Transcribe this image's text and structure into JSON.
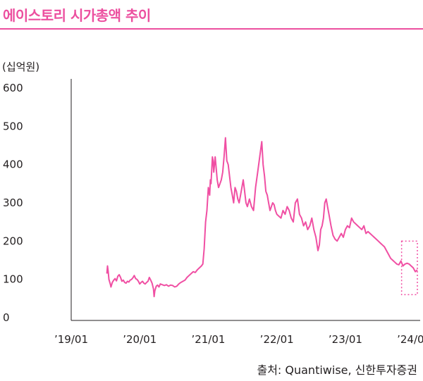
{
  "header": {
    "title": "에이스토리 시가총액 추이",
    "unit_label": "(십억원)"
  },
  "footer": {
    "source": "출처: Quantiwise, 신한투자증권"
  },
  "colors": {
    "accent": "#ec4f9f",
    "line": "#f04fa3",
    "axis": "#231f20"
  },
  "chart_data": {
    "type": "line",
    "title": "에이스토리 시가총액 추이",
    "ylabel": "(십억원)",
    "xlabel": "",
    "ylim": [
      0,
      600
    ],
    "xlim": [
      2019.0,
      2024.05
    ],
    "y_ticks": [
      "0",
      "100",
      "200",
      "300",
      "400",
      "500",
      "600"
    ],
    "x_ticks": [
      {
        "label": "’19/01",
        "x": 2019.0
      },
      {
        "label": "’20/01",
        "x": 2020.0
      },
      {
        "label": "’21/01",
        "x": 2021.0
      },
      {
        "label": "’22/01",
        "x": 2022.0
      },
      {
        "label": "’23/01",
        "x": 2023.0
      },
      {
        "label": "’24/01",
        "x": 2024.0
      }
    ],
    "grid": false,
    "legend": "none",
    "highlight_box": {
      "x_from": 2023.82,
      "x_to": 2024.05,
      "y_from": 60,
      "y_to": 200,
      "style": "dotted"
    },
    "series": [
      {
        "x": [
          2019.52,
          2019.53,
          2019.54,
          2019.55,
          2019.57,
          2019.58,
          2019.6,
          2019.62,
          2019.64,
          2019.66,
          2019.68,
          2019.7,
          2019.72,
          2019.74,
          2019.76,
          2019.78,
          2019.8,
          2019.82,
          2019.84,
          2019.86,
          2019.88,
          2019.9,
          2019.92,
          2019.94,
          2019.96,
          2019.98,
          2020.0,
          2020.02,
          2020.04,
          2020.06,
          2020.08,
          2020.1,
          2020.12,
          2020.14,
          2020.16,
          2020.18,
          2020.2,
          2020.21,
          2020.22,
          2020.24,
          2020.26,
          2020.28,
          2020.3,
          2020.33,
          2020.36,
          2020.39,
          2020.42,
          2020.45,
          2020.48,
          2020.51,
          2020.54,
          2020.57,
          2020.6,
          2020.63,
          2020.66,
          2020.69,
          2020.72,
          2020.75,
          2020.78,
          2020.81,
          2020.84,
          2020.87,
          2020.9,
          2020.92,
          2020.94,
          2020.96,
          2020.98,
          2021.0,
          2021.02,
          2021.03,
          2021.04,
          2021.06,
          2021.07,
          2021.08,
          2021.1,
          2021.11,
          2021.13,
          2021.15,
          2021.17,
          2021.19,
          2021.21,
          2021.23,
          2021.25,
          2021.27,
          2021.29,
          2021.31,
          2021.33,
          2021.35,
          2021.37,
          2021.39,
          2021.41,
          2021.43,
          2021.45,
          2021.47,
          2021.49,
          2021.51,
          2021.53,
          2021.55,
          2021.57,
          2021.6,
          2021.63,
          2021.66,
          2021.69,
          2021.72,
          2021.75,
          2021.78,
          2021.8,
          2021.82,
          2021.84,
          2021.86,
          2021.88,
          2021.9,
          2021.92,
          2021.94,
          2021.96,
          2021.98,
          2022.0,
          2022.03,
          2022.06,
          2022.09,
          2022.12,
          2022.15,
          2022.18,
          2022.21,
          2022.24,
          2022.27,
          2022.3,
          2022.33,
          2022.36,
          2022.39,
          2022.42,
          2022.45,
          2022.48,
          2022.51,
          2022.54,
          2022.57,
          2022.6,
          2022.62,
          2022.64,
          2022.66,
          2022.68,
          2022.7,
          2022.72,
          2022.74,
          2022.76,
          2022.79,
          2022.82,
          2022.85,
          2022.88,
          2022.91,
          2022.94,
          2022.97,
          2023.0,
          2023.03,
          2023.06,
          2023.09,
          2023.12,
          2023.15,
          2023.18,
          2023.21,
          2023.24,
          2023.27,
          2023.3,
          2023.33,
          2023.36,
          2023.39,
          2023.42,
          2023.45,
          2023.48,
          2023.51,
          2023.54,
          2023.57,
          2023.6,
          2023.63,
          2023.66,
          2023.69,
          2023.72,
          2023.75,
          2023.78,
          2023.81,
          2023.84,
          2023.87,
          2023.9,
          2023.93,
          2023.96,
          2023.99,
          2024.02,
          2024.05
        ],
        "values": [
          115,
          135,
          120,
          100,
          88,
          80,
          92,
          98,
          102,
          96,
          108,
          112,
          105,
          95,
          98,
          92,
          90,
          95,
          93,
          98,
          100,
          104,
          110,
          102,
          100,
          95,
          88,
          92,
          95,
          90,
          88,
          92,
          95,
          105,
          98,
          90,
          75,
          55,
          70,
          82,
          85,
          80,
          88,
          86,
          84,
          86,
          82,
          85,
          84,
          80,
          82,
          88,
          92,
          95,
          98,
          105,
          110,
          115,
          120,
          118,
          125,
          130,
          135,
          140,
          180,
          250,
          280,
          340,
          320,
          360,
          350,
          420,
          410,
          380,
          420,
          400,
          360,
          340,
          350,
          360,
          380,
          420,
          470,
          410,
          400,
          370,
          340,
          320,
          300,
          340,
          330,
          310,
          300,
          320,
          340,
          360,
          330,
          300,
          290,
          310,
          290,
          280,
          340,
          380,
          420,
          460,
          400,
          370,
          330,
          320,
          300,
          280,
          290,
          300,
          295,
          280,
          270,
          265,
          260,
          280,
          270,
          290,
          280,
          260,
          250,
          300,
          310,
          270,
          260,
          240,
          250,
          230,
          240,
          260,
          230,
          210,
          175,
          190,
          230,
          240,
          260,
          300,
          310,
          290,
          270,
          240,
          215,
          205,
          200,
          210,
          220,
          210,
          230,
          240,
          235,
          260,
          250,
          245,
          240,
          235,
          230,
          240,
          220,
          225,
          220,
          215,
          210,
          205,
          200,
          195,
          190,
          185,
          175,
          165,
          155,
          150,
          145,
          140,
          138,
          148,
          135,
          140,
          142,
          140,
          135,
          130,
          120,
          125
        ]
      }
    ]
  }
}
